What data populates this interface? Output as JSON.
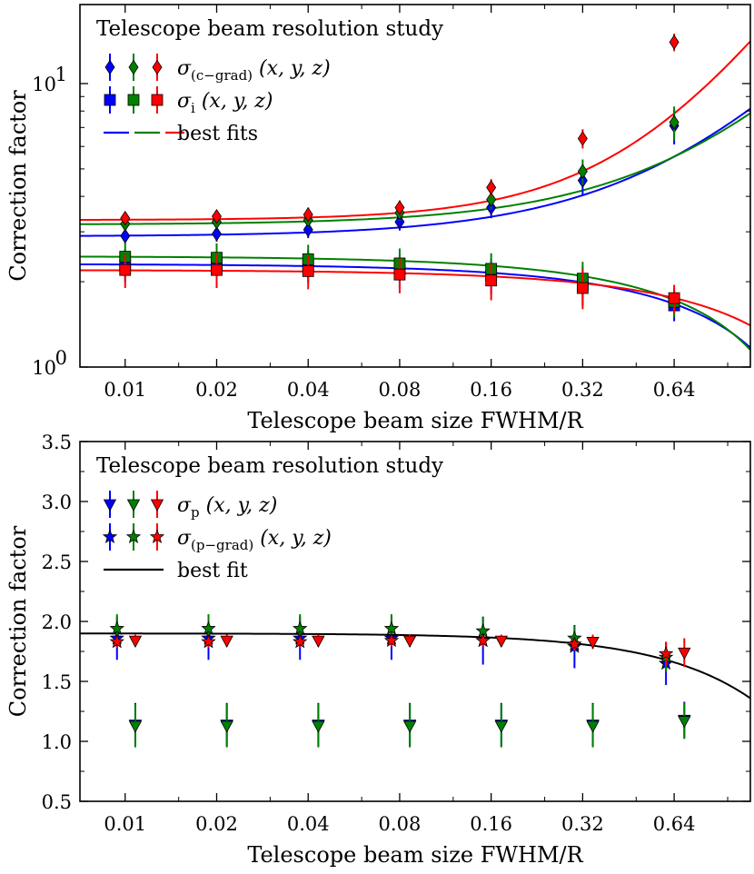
{
  "colors": {
    "blue": "#0000ff",
    "green": "#008000",
    "red": "#ff0000",
    "black": "#000000"
  },
  "chart_data": [
    {
      "type": "scatter",
      "panel": "top",
      "xscale": "log2",
      "yscale": "log",
      "xlabel": "Telescope beam size FWHM/R",
      "ylabel": "Correction factor",
      "xticks": [
        0.01,
        0.02,
        0.04,
        0.08,
        0.16,
        0.32,
        0.64
      ],
      "xtick_labels": [
        "0.01",
        "0.02",
        "0.04",
        "0.08",
        "0.16",
        "0.32",
        "0.64"
      ],
      "xlim": [
        0.0071,
        1.14
      ],
      "ylim": [
        1.0,
        19.0
      ],
      "ytick_labels": [
        {
          "value": 1.0,
          "base": "10",
          "exp": "0"
        },
        {
          "value": 10.0,
          "base": "10",
          "exp": "1"
        }
      ],
      "legend": {
        "title": "Telescope beam resolution study",
        "position": "top-left",
        "entries": [
          {
            "marker": "diamond",
            "sym": "σ",
            "sub": "(c−grad)",
            "args": " (x, y, z)"
          },
          {
            "marker": "square",
            "sym": "σ",
            "sub": "i",
            "args": " (x, y, z)"
          },
          {
            "marker": "dash",
            "label": "best fits"
          }
        ]
      },
      "series": [
        {
          "name": "σ(c−grad) x",
          "marker": "diamond",
          "color": "blue",
          "x": [
            0.01,
            0.02,
            0.04,
            0.08,
            0.16,
            0.32,
            0.64
          ],
          "y": [
            2.9,
            2.95,
            3.05,
            3.25,
            3.65,
            4.55,
            7.1
          ],
          "yerr": [
            0.18,
            0.18,
            0.2,
            0.22,
            0.3,
            0.5,
            1.0
          ]
        },
        {
          "name": "σ(c−grad) y",
          "marker": "diamond",
          "color": "green",
          "x": [
            0.01,
            0.02,
            0.04,
            0.08,
            0.16,
            0.32,
            0.64
          ],
          "y": [
            3.2,
            3.25,
            3.3,
            3.5,
            3.9,
            4.9,
            7.3
          ],
          "yerr": [
            0.18,
            0.18,
            0.2,
            0.22,
            0.3,
            0.5,
            1.0
          ]
        },
        {
          "name": "σ(c−grad) z",
          "marker": "diamond",
          "color": "red",
          "x": [
            0.01,
            0.02,
            0.04,
            0.08,
            0.16,
            0.32,
            0.64
          ],
          "y": [
            3.35,
            3.4,
            3.45,
            3.65,
            4.3,
            6.4,
            14.0
          ],
          "yerr": [
            0.18,
            0.18,
            0.2,
            0.22,
            0.3,
            0.5,
            1.0
          ]
        },
        {
          "name": "σi x",
          "marker": "square",
          "color": "blue",
          "x": [
            0.01,
            0.02,
            0.04,
            0.08,
            0.16,
            0.32,
            0.64
          ],
          "y": [
            2.3,
            2.3,
            2.28,
            2.2,
            2.1,
            1.95,
            1.65
          ],
          "yerr": [
            0.3,
            0.3,
            0.3,
            0.3,
            0.3,
            0.3,
            0.2
          ]
        },
        {
          "name": "σi y",
          "marker": "square",
          "color": "green",
          "x": [
            0.01,
            0.02,
            0.04,
            0.08,
            0.16,
            0.32,
            0.64
          ],
          "y": [
            2.45,
            2.43,
            2.4,
            2.32,
            2.22,
            2.05,
            1.7
          ],
          "yerr": [
            0.3,
            0.3,
            0.3,
            0.3,
            0.3,
            0.3,
            0.2
          ]
        },
        {
          "name": "σi z",
          "marker": "square",
          "color": "red",
          "x": [
            0.01,
            0.02,
            0.04,
            0.08,
            0.16,
            0.32,
            0.64
          ],
          "y": [
            2.2,
            2.2,
            2.18,
            2.12,
            2.02,
            1.9,
            1.75
          ],
          "yerr": [
            0.3,
            0.3,
            0.3,
            0.3,
            0.3,
            0.3,
            0.2
          ]
        }
      ],
      "fits": [
        {
          "color": "blue",
          "dashed": false,
          "a": 2.89,
          "b": 4.5,
          "p": 1.2
        },
        {
          "color": "green",
          "dashed": false,
          "a": 3.18,
          "b": 4.0,
          "p": 1.2
        },
        {
          "color": "red",
          "dashed": false,
          "a": 3.3,
          "b": 8.87,
          "p": 1.5
        },
        {
          "color": "blue",
          "dashed": false,
          "a": 2.31,
          "b": -1.0,
          "p": 1.0
        },
        {
          "color": "green",
          "dashed": false,
          "a": 2.46,
          "b": -1.15,
          "p": 1.0
        },
        {
          "color": "red",
          "dashed": false,
          "a": 2.2,
          "b": -0.7,
          "p": 1.0
        }
      ]
    },
    {
      "type": "scatter",
      "panel": "bottom",
      "xscale": "log2",
      "yscale": "linear",
      "xlabel": "Telescope beam size FWHM/R",
      "ylabel": "Correction factor",
      "xticks": [
        0.01,
        0.02,
        0.04,
        0.08,
        0.16,
        0.32,
        0.64
      ],
      "xtick_labels": [
        "0.01",
        "0.02",
        "0.04",
        "0.08",
        "0.16",
        "0.32",
        "0.64"
      ],
      "xlim": [
        0.0071,
        1.14
      ],
      "ylim": [
        0.5,
        3.5
      ],
      "yticks": [
        0.5,
        1.0,
        1.5,
        2.0,
        2.5,
        3.0,
        3.5
      ],
      "ytick_labels": [
        "0.5",
        "1.0",
        "1.5",
        "2.0",
        "2.5",
        "3.0",
        "3.5"
      ],
      "legend": {
        "title": "Telescope beam resolution study",
        "position": "top-left",
        "entries": [
          {
            "marker": "triangle-down",
            "sym": "σ",
            "sub": "p",
            "args": " (x, y, z)"
          },
          {
            "marker": "star",
            "sym": "σ",
            "sub": "(p−grad)",
            "args": " (x, y, z)"
          },
          {
            "marker": "line",
            "label": "best fit"
          }
        ]
      },
      "series": [
        {
          "name": "σp x",
          "marker": "triangle-down",
          "color": "blue",
          "x": [
            0.0108,
            0.0216,
            0.0432,
            0.0864,
            0.1728,
            0.3456,
            0.6912
          ],
          "y": [
            1.14,
            1.14,
            1.14,
            1.14,
            1.14,
            1.14,
            1.18
          ],
          "yerr": [
            0.18,
            0.18,
            0.18,
            0.18,
            0.18,
            0.18,
            0.15
          ]
        },
        {
          "name": "σp y",
          "marker": "triangle-down",
          "color": "green",
          "x": [
            0.0108,
            0.0216,
            0.0432,
            0.0864,
            0.1728,
            0.3456,
            0.6912
          ],
          "y": [
            1.13,
            1.13,
            1.13,
            1.13,
            1.13,
            1.13,
            1.17
          ],
          "yerr": [
            0.18,
            0.18,
            0.18,
            0.18,
            0.18,
            0.18,
            0.15
          ]
        },
        {
          "name": "σp z",
          "marker": "triangle-down",
          "color": "red",
          "x": [
            0.0108,
            0.0216,
            0.0432,
            0.0864,
            0.1728,
            0.3456,
            0.6912
          ],
          "y": [
            1.84,
            1.84,
            1.84,
            1.84,
            1.84,
            1.83,
            1.74
          ],
          "yerr": [
            0.05,
            0.05,
            0.05,
            0.05,
            0.05,
            0.06,
            0.12
          ]
        },
        {
          "name": "σ(p−grad) x",
          "marker": "star",
          "color": "blue",
          "x": [
            0.0094,
            0.0188,
            0.0376,
            0.0752,
            0.1504,
            0.3008,
            0.6016
          ],
          "y": [
            1.86,
            1.86,
            1.86,
            1.86,
            1.84,
            1.79,
            1.65
          ],
          "yerr": [
            0.18,
            0.18,
            0.18,
            0.18,
            0.2,
            0.18,
            0.18
          ]
        },
        {
          "name": "σ(p−grad) y",
          "marker": "star",
          "color": "green",
          "x": [
            0.0094,
            0.0188,
            0.0376,
            0.0752,
            0.1504,
            0.3008,
            0.6016
          ],
          "y": [
            1.94,
            1.94,
            1.94,
            1.94,
            1.92,
            1.86,
            1.7
          ],
          "yerr": [
            0.12,
            0.12,
            0.12,
            0.12,
            0.12,
            0.1,
            0.12
          ]
        },
        {
          "name": "σ(p−grad) z",
          "marker": "star",
          "color": "red",
          "x": [
            0.0094,
            0.0188,
            0.0376,
            0.0752,
            0.1504,
            0.3008,
            0.6016
          ],
          "y": [
            1.83,
            1.83,
            1.83,
            1.84,
            1.84,
            1.81,
            1.73
          ],
          "yerr": [
            0.05,
            0.05,
            0.05,
            0.05,
            0.05,
            0.05,
            0.1
          ]
        }
      ],
      "fits": [
        {
          "color": "black",
          "dashed": false,
          "a": 1.9,
          "b": -0.45,
          "p": 1.4
        }
      ]
    }
  ]
}
